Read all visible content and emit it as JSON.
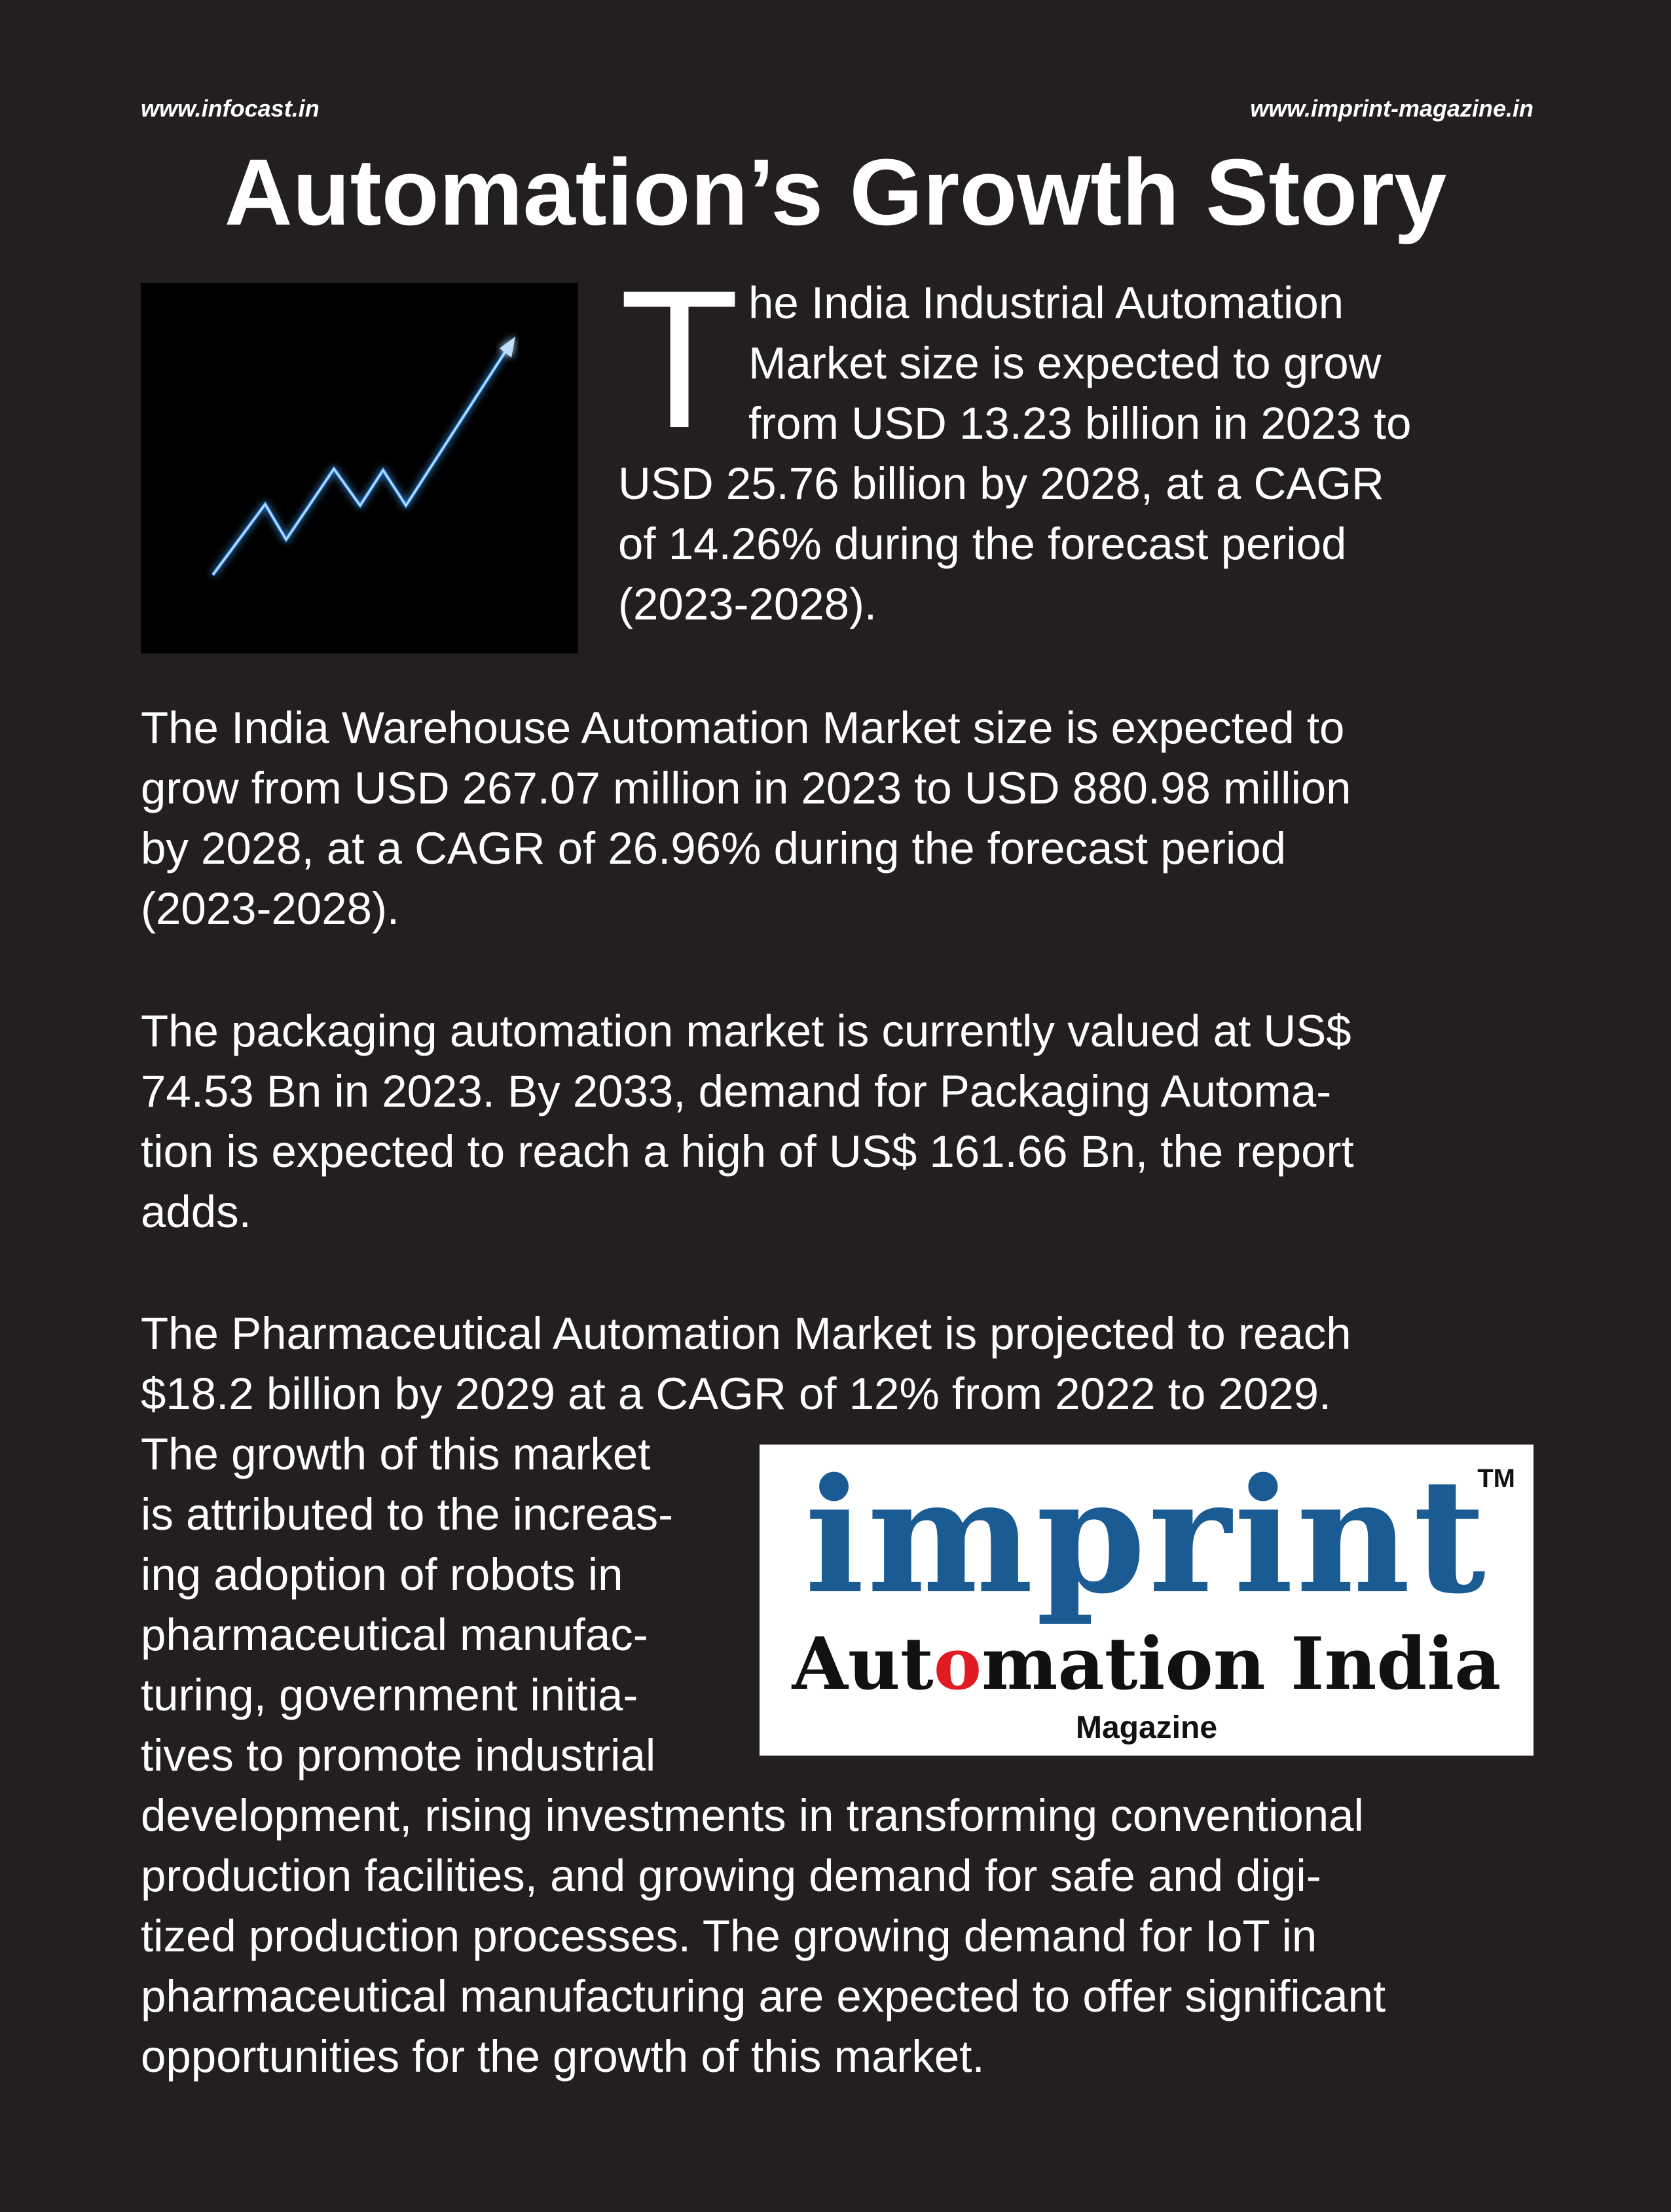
{
  "header": {
    "left_url": "www.infocast.in",
    "right_url": "www.imprint-magazine.in"
  },
  "title": "Automation’s Growth Story",
  "image": {
    "icon": "growth-arrow-line-icon"
  },
  "paragraph1": {
    "dropcap": "T",
    "lines": [
      "he India Industrial Automation",
      "Market size is expected to grow",
      "from USD 13.23 billion in 2023 to",
      "USD 25.76 billion by 2028, at a CAGR",
      "of 14.26% during the forecast period",
      "(2023-2028)."
    ]
  },
  "paragraph2": {
    "lines": [
      "The India Warehouse Automation Market size is expected to",
      "grow from USD 267.07 million in 2023 to USD 880.98 million",
      "by 2028, at a CAGR of 26.96% during the forecast period",
      "(2023-2028)."
    ]
  },
  "paragraph3": {
    "lines": [
      "The packaging automation market is currently valued at US$",
      "74.53 Bn in 2023. By 2033, demand for Packaging Automa-",
      "tion is expected to reach a high of US$ 161.66 Bn, the report",
      "adds."
    ]
  },
  "paragraph4": {
    "lines": [
      "The Pharmaceutical Automation Market is projected to reach",
      "$18.2 billion by 2029 at a CAGR of 12% from 2022 to 2029.",
      "The growth of this market",
      "is attributed to the increas-",
      "ing adoption of robots in",
      "pharmaceutical manufac-",
      "turing, government initia-",
      "tives to promote industrial",
      "development, rising investments in transforming conventional",
      "production facilities, and growing demand for safe and digi-",
      "tized production processes. The growing demand for IoT in",
      "pharmaceutical manufacturing are expected to offer significant",
      "opportunities for the growth of this market."
    ]
  },
  "logo": {
    "word": "imprint",
    "tm": "TM",
    "sub_before": "Aut",
    "sub_o": "o",
    "sub_after": "mation India",
    "magazine": "Magazine"
  },
  "colors": {
    "background": "#231f20",
    "text": "#ffffff",
    "logo_blue": "#1b5b93",
    "logo_red": "#e01b22",
    "arrow_glow": "#4aa3ff"
  }
}
